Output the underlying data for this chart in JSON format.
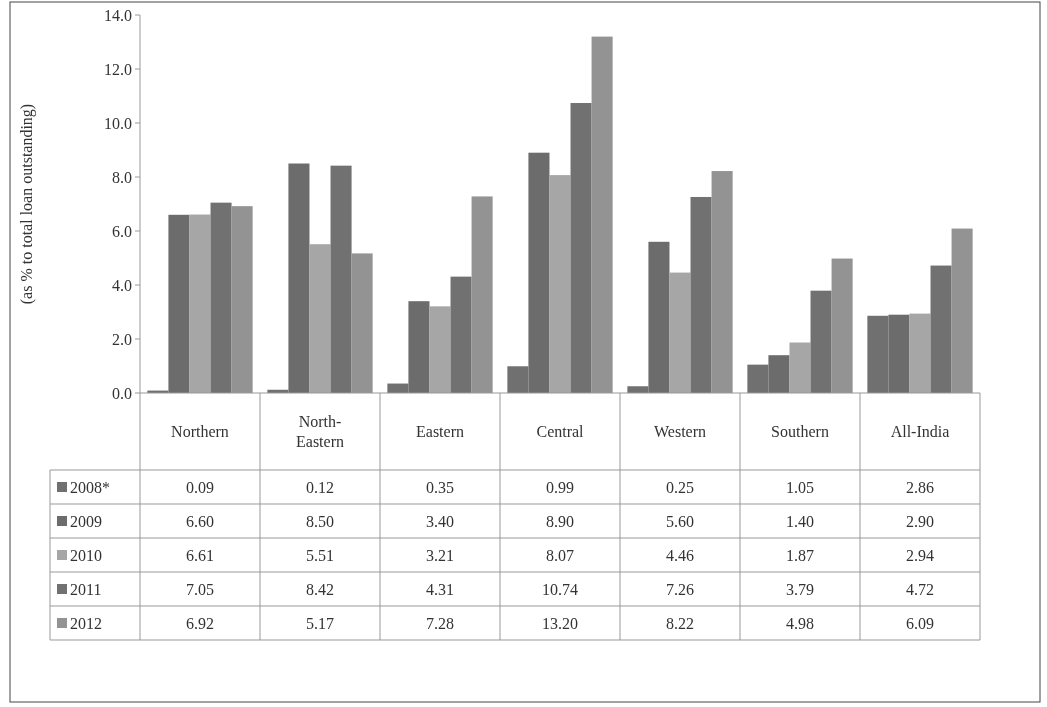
{
  "chart_data": {
    "type": "bar",
    "ylabel": "(as % to total loan outstanding)",
    "categories": [
      "Northern",
      "North-Eastern",
      "Eastern",
      "Central",
      "Western",
      "Southern",
      "All-India"
    ],
    "series": [
      {
        "name": "2008*",
        "color": "#707070",
        "values": [
          0.09,
          0.12,
          0.35,
          0.99,
          0.25,
          1.05,
          2.86
        ],
        "value_labels": [
          "0.09",
          "0.12",
          "0.35",
          "0.99",
          "0.25",
          "1.05",
          "2.86"
        ]
      },
      {
        "name": "2009",
        "color": "#6c6c6c",
        "values": [
          6.6,
          8.5,
          3.4,
          8.9,
          5.6,
          1.4,
          2.9
        ],
        "value_labels": [
          "6.60",
          "8.50",
          "3.40",
          "8.90",
          "5.60",
          "1.40",
          "2.90"
        ]
      },
      {
        "name": "2010",
        "color": "#a6a6a6",
        "values": [
          6.61,
          5.51,
          3.21,
          8.07,
          4.46,
          1.87,
          2.94
        ],
        "value_labels": [
          "6.61",
          "5.51",
          "3.21",
          "8.07",
          "4.46",
          "1.87",
          "2.94"
        ]
      },
      {
        "name": "2011",
        "color": "#717171",
        "values": [
          7.05,
          8.42,
          4.31,
          10.74,
          7.26,
          3.79,
          4.72
        ],
        "value_labels": [
          "7.05",
          "8.42",
          "4.31",
          "10.74",
          "7.26",
          "3.79",
          "4.72"
        ]
      },
      {
        "name": "2012",
        "color": "#939393",
        "values": [
          6.92,
          5.17,
          7.28,
          13.2,
          8.22,
          4.98,
          6.09
        ],
        "value_labels": [
          "6.92",
          "5.17",
          "7.28",
          "13.20",
          "8.22",
          "4.98",
          "6.09"
        ]
      }
    ],
    "ylim": [
      0,
      14
    ],
    "yticks": [
      {
        "value": 0,
        "label": "0.0"
      },
      {
        "value": 2,
        "label": "2.0"
      },
      {
        "value": 4,
        "label": "4.0"
      },
      {
        "value": 6,
        "label": "6.0"
      },
      {
        "value": 8,
        "label": "8.0"
      },
      {
        "value": 10,
        "label": "10.0"
      },
      {
        "value": 12,
        "label": "12.0"
      },
      {
        "value": 14,
        "label": "14.0"
      }
    ],
    "legend": "bottom left"
  }
}
